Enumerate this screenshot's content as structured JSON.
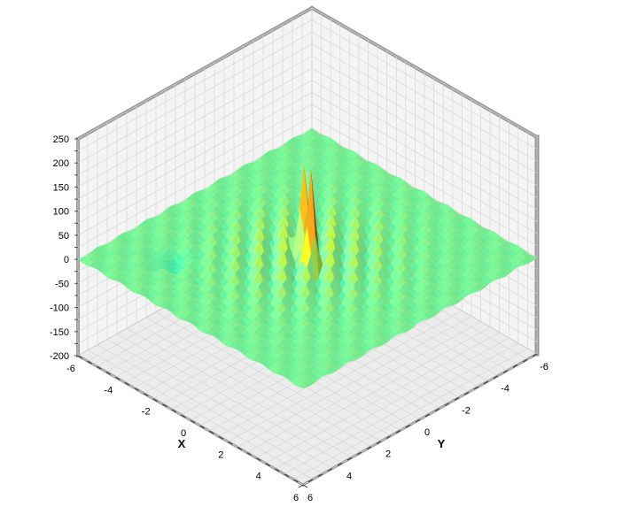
{
  "chart_data": {
    "type": "surface",
    "title": "",
    "xlabel": "X",
    "ylabel": "Y",
    "zlabel": "",
    "xlim": [
      -6,
      6
    ],
    "ylim": [
      -6,
      6
    ],
    "zlim": [
      -200,
      250
    ],
    "x_ticks": [
      -6,
      -4,
      -2,
      0,
      2,
      4,
      6
    ],
    "y_ticks": [
      -6,
      -4,
      -2,
      0,
      2,
      4,
      6
    ],
    "z_ticks": [
      -200,
      -150,
      -100,
      -50,
      0,
      50,
      100,
      150,
      200,
      250
    ],
    "x_tick_labels": [
      "-6",
      "-4",
      "-2",
      "0",
      "2",
      "4",
      "6"
    ],
    "y_tick_labels": [
      "-6",
      "-4",
      "-2",
      "0",
      "2",
      "4",
      "6"
    ],
    "z_tick_labels": [
      "-200",
      "-150",
      "-100",
      "-50",
      "0",
      "50",
      "100",
      "150",
      "200",
      "250"
    ],
    "z_peak": 200,
    "z_trough": -60,
    "grid": true,
    "colormap": [
      "#00c8f0",
      "#3cf0b0",
      "#80f090",
      "#f0f000",
      "#f08020",
      "#e03010"
    ]
  }
}
